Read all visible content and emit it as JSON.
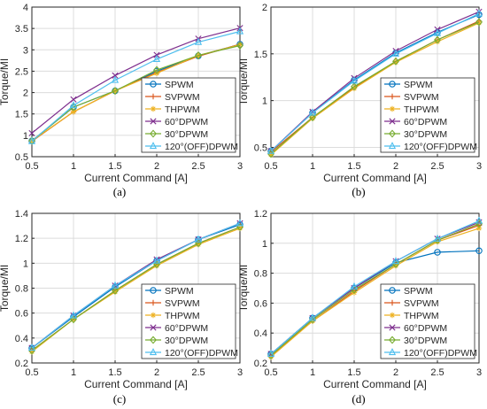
{
  "caption_a": "(a)",
  "caption_b": "(b)",
  "caption_c": "(c)",
  "caption_d": "(d)",
  "series_styles": [
    {
      "name": "SPWM",
      "color": "#0072BD",
      "marker": "circle"
    },
    {
      "name": "SVPWM",
      "color": "#D95319",
      "marker": "plus"
    },
    {
      "name": "THPWM",
      "color": "#EDB120",
      "marker": "star"
    },
    {
      "name": "60°DPWM",
      "color": "#7E2F8E",
      "marker": "x"
    },
    {
      "name": "30°DPWM",
      "color": "#77AC30",
      "marker": "diamond"
    },
    {
      "name": "120°(OFF)DPWM",
      "color": "#4DBEEE",
      "marker": "triangle"
    }
  ],
  "chart_data": [
    {
      "type": "line",
      "caption": "(a)",
      "xlabel": "Current Command [A]",
      "ylabel": "Torque/MI",
      "xlim": [
        0.5,
        3
      ],
      "ylim": [
        0.5,
        4
      ],
      "xticks": [
        "0.5",
        "1",
        "1.5",
        "2",
        "2.5",
        "3"
      ],
      "yticks": [
        "0.5",
        "1",
        "1.5",
        "2",
        "2.5",
        "3",
        "3.5",
        "4"
      ],
      "grid": true,
      "legend_position": "bottom-right",
      "x": [
        0.5,
        1,
        1.5,
        2,
        2.5,
        3
      ],
      "series": [
        {
          "name": "SPWM",
          "values": [
            0.87,
            1.66,
            2.04,
            2.5,
            2.86,
            3.13
          ]
        },
        {
          "name": "SVPWM",
          "values": [
            0.86,
            1.55,
            2.04,
            2.47,
            2.85,
            3.13
          ]
        },
        {
          "name": "THPWM",
          "values": [
            0.87,
            1.55,
            2.04,
            2.45,
            2.87,
            3.12
          ]
        },
        {
          "name": "60°DPWM",
          "values": [
            1.05,
            1.84,
            2.4,
            2.88,
            3.26,
            3.51
          ]
        },
        {
          "name": "30°DPWM",
          "values": [
            0.87,
            1.66,
            2.04,
            2.53,
            2.87,
            3.1
          ]
        },
        {
          "name": "120°(OFF)DPWM",
          "values": [
            0.86,
            1.7,
            2.29,
            2.78,
            3.18,
            3.43
          ]
        }
      ]
    },
    {
      "type": "line",
      "caption": "(b)",
      "xlabel": "Current Command [A]",
      "ylabel": "Torque/MI",
      "xlim": [
        0.5,
        3
      ],
      "ylim": [
        0.4,
        2
      ],
      "xticks": [
        "0.5",
        "1",
        "1.5",
        "2",
        "2.5",
        "3"
      ],
      "yticks": [
        "0.5",
        "1",
        "1.5",
        "2"
      ],
      "grid": true,
      "legend_position": "bottom-right",
      "x": [
        0.5,
        1,
        1.5,
        2,
        2.5,
        3
      ],
      "series": [
        {
          "name": "SPWM",
          "values": [
            0.46,
            0.87,
            1.22,
            1.51,
            1.73,
            1.92
          ]
        },
        {
          "name": "SVPWM",
          "values": [
            0.45,
            0.82,
            1.14,
            1.42,
            1.65,
            1.85
          ]
        },
        {
          "name": "THPWM",
          "values": [
            0.42,
            0.81,
            1.13,
            1.41,
            1.63,
            1.83
          ]
        },
        {
          "name": "60°DPWM",
          "values": [
            0.46,
            0.88,
            1.24,
            1.53,
            1.76,
            1.95
          ]
        },
        {
          "name": "30°DPWM",
          "values": [
            0.43,
            0.82,
            1.15,
            1.42,
            1.65,
            1.84
          ]
        },
        {
          "name": "120°(OFF)DPWM",
          "values": [
            0.46,
            0.87,
            1.21,
            1.5,
            1.72,
            1.93
          ]
        }
      ]
    },
    {
      "type": "line",
      "caption": "(c)",
      "xlabel": "Current Command [A]",
      "ylabel": "Torque/MI",
      "xlim": [
        0.5,
        3
      ],
      "ylim": [
        0.2,
        1.4
      ],
      "xticks": [
        "0.5",
        "1",
        "1.5",
        "2",
        "2.5",
        "3"
      ],
      "yticks": [
        "0.2",
        "0.4",
        "0.6",
        "0.8",
        "1",
        "1.2",
        "1.4"
      ],
      "grid": true,
      "legend_position": "bottom-right",
      "x": [
        0.5,
        1,
        1.5,
        2,
        2.5,
        3
      ],
      "series": [
        {
          "name": "SPWM",
          "values": [
            0.32,
            0.57,
            0.81,
            1.02,
            1.19,
            1.31
          ]
        },
        {
          "name": "SVPWM",
          "values": [
            0.3,
            0.55,
            0.78,
            0.99,
            1.16,
            1.29
          ]
        },
        {
          "name": "THPWM",
          "values": [
            0.29,
            0.55,
            0.77,
            0.98,
            1.15,
            1.28
          ]
        },
        {
          "name": "60°DPWM",
          "values": [
            0.32,
            0.58,
            0.82,
            1.03,
            1.19,
            1.32
          ]
        },
        {
          "name": "30°DPWM",
          "values": [
            0.3,
            0.55,
            0.78,
            0.99,
            1.16,
            1.29
          ]
        },
        {
          "name": "120°(OFF)DPWM",
          "values": [
            0.32,
            0.58,
            0.82,
            1.02,
            1.19,
            1.32
          ]
        }
      ]
    },
    {
      "type": "line",
      "caption": "(d)",
      "xlabel": "Current Command [A]",
      "ylabel": "Torque/MI",
      "xlim": [
        0.5,
        3
      ],
      "ylim": [
        0.2,
        1.2
      ],
      "xticks": [
        "0.5",
        "1",
        "1.5",
        "2",
        "2.5",
        "3"
      ],
      "yticks": [
        "0.2",
        "0.4",
        "0.6",
        "0.8",
        "1",
        "1.2"
      ],
      "grid": true,
      "legend_position": "bottom-right",
      "x": [
        0.5,
        1,
        1.5,
        2,
        2.5,
        3
      ],
      "series": [
        {
          "name": "SPWM",
          "values": [
            0.26,
            0.5,
            0.7,
            0.87,
            0.94,
            0.95
          ]
        },
        {
          "name": "SVPWM",
          "values": [
            0.25,
            0.48,
            0.68,
            0.86,
            1.02,
            1.12
          ]
        },
        {
          "name": "THPWM",
          "values": [
            0.24,
            0.48,
            0.67,
            0.85,
            1.01,
            1.1
          ]
        },
        {
          "name": "60°DPWM",
          "values": [
            0.26,
            0.5,
            0.7,
            0.88,
            1.03,
            1.14
          ]
        },
        {
          "name": "30°DPWM",
          "values": [
            0.25,
            0.49,
            0.69,
            0.86,
            1.02,
            1.13
          ]
        },
        {
          "name": "120°(OFF)DPWM",
          "values": [
            0.26,
            0.5,
            0.71,
            0.88,
            1.03,
            1.15
          ]
        }
      ]
    }
  ]
}
